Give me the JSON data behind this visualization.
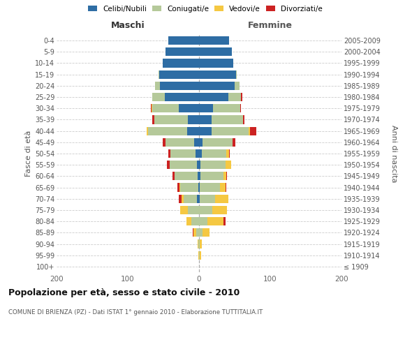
{
  "age_groups": [
    "100+",
    "95-99",
    "90-94",
    "85-89",
    "80-84",
    "75-79",
    "70-74",
    "65-69",
    "60-64",
    "55-59",
    "50-54",
    "45-49",
    "40-44",
    "35-39",
    "30-34",
    "25-29",
    "20-24",
    "15-19",
    "10-14",
    "5-9",
    "0-4"
  ],
  "birth_years": [
    "≤ 1909",
    "1910-1914",
    "1915-1919",
    "1920-1924",
    "1925-1929",
    "1930-1934",
    "1935-1939",
    "1940-1944",
    "1945-1949",
    "1950-1954",
    "1955-1959",
    "1960-1964",
    "1965-1969",
    "1970-1974",
    "1975-1979",
    "1980-1984",
    "1985-1989",
    "1990-1994",
    "1995-1999",
    "2000-2004",
    "2005-2009"
  ],
  "male": {
    "celibi": [
      0,
      0,
      0,
      0,
      0,
      0,
      3,
      1,
      2,
      3,
      5,
      7,
      17,
      16,
      28,
      48,
      55,
      56,
      51,
      47,
      43
    ],
    "coniugati": [
      0,
      0,
      1,
      4,
      11,
      16,
      19,
      25,
      32,
      38,
      35,
      40,
      55,
      47,
      38,
      18,
      7,
      1,
      0,
      0,
      0
    ],
    "vedovi": [
      0,
      1,
      1,
      4,
      7,
      10,
      3,
      1,
      0,
      0,
      0,
      0,
      2,
      0,
      1,
      0,
      0,
      0,
      0,
      0,
      0
    ],
    "divorziati": [
      0,
      0,
      0,
      1,
      0,
      0,
      3,
      3,
      3,
      4,
      3,
      4,
      0,
      3,
      1,
      0,
      0,
      0,
      0,
      0,
      0
    ]
  },
  "female": {
    "nubili": [
      0,
      0,
      0,
      0,
      0,
      0,
      1,
      1,
      2,
      2,
      4,
      5,
      18,
      18,
      20,
      41,
      50,
      52,
      48,
      46,
      42
    ],
    "coniugate": [
      0,
      1,
      1,
      5,
      12,
      19,
      22,
      28,
      32,
      35,
      34,
      42,
      52,
      44,
      38,
      18,
      7,
      1,
      0,
      0,
      0
    ],
    "vedove": [
      0,
      2,
      3,
      10,
      22,
      20,
      18,
      8,
      4,
      8,
      4,
      0,
      2,
      0,
      0,
      0,
      0,
      0,
      0,
      0,
      0
    ],
    "divorziate": [
      0,
      0,
      0,
      0,
      3,
      0,
      0,
      1,
      1,
      0,
      1,
      4,
      8,
      2,
      1,
      2,
      0,
      0,
      0,
      0,
      0
    ]
  },
  "colors": {
    "celibi": "#2e6da4",
    "coniugati": "#b5c99a",
    "vedovi": "#f5c842",
    "divorziati": "#cc2222"
  },
  "xlim": 200,
  "title": "Popolazione per età, sesso e stato civile - 2010",
  "subtitle": "COMUNE DI BRIENZA (PZ) - Dati ISTAT 1° gennaio 2010 - Elaborazione TUTTITALIA.IT",
  "ylabel_left": "Fasce di età",
  "ylabel_right": "Anni di nascita",
  "xlabel_maschi": "Maschi",
  "xlabel_femmine": "Femmine",
  "bg_color": "#ffffff",
  "grid_color": "#cccccc"
}
